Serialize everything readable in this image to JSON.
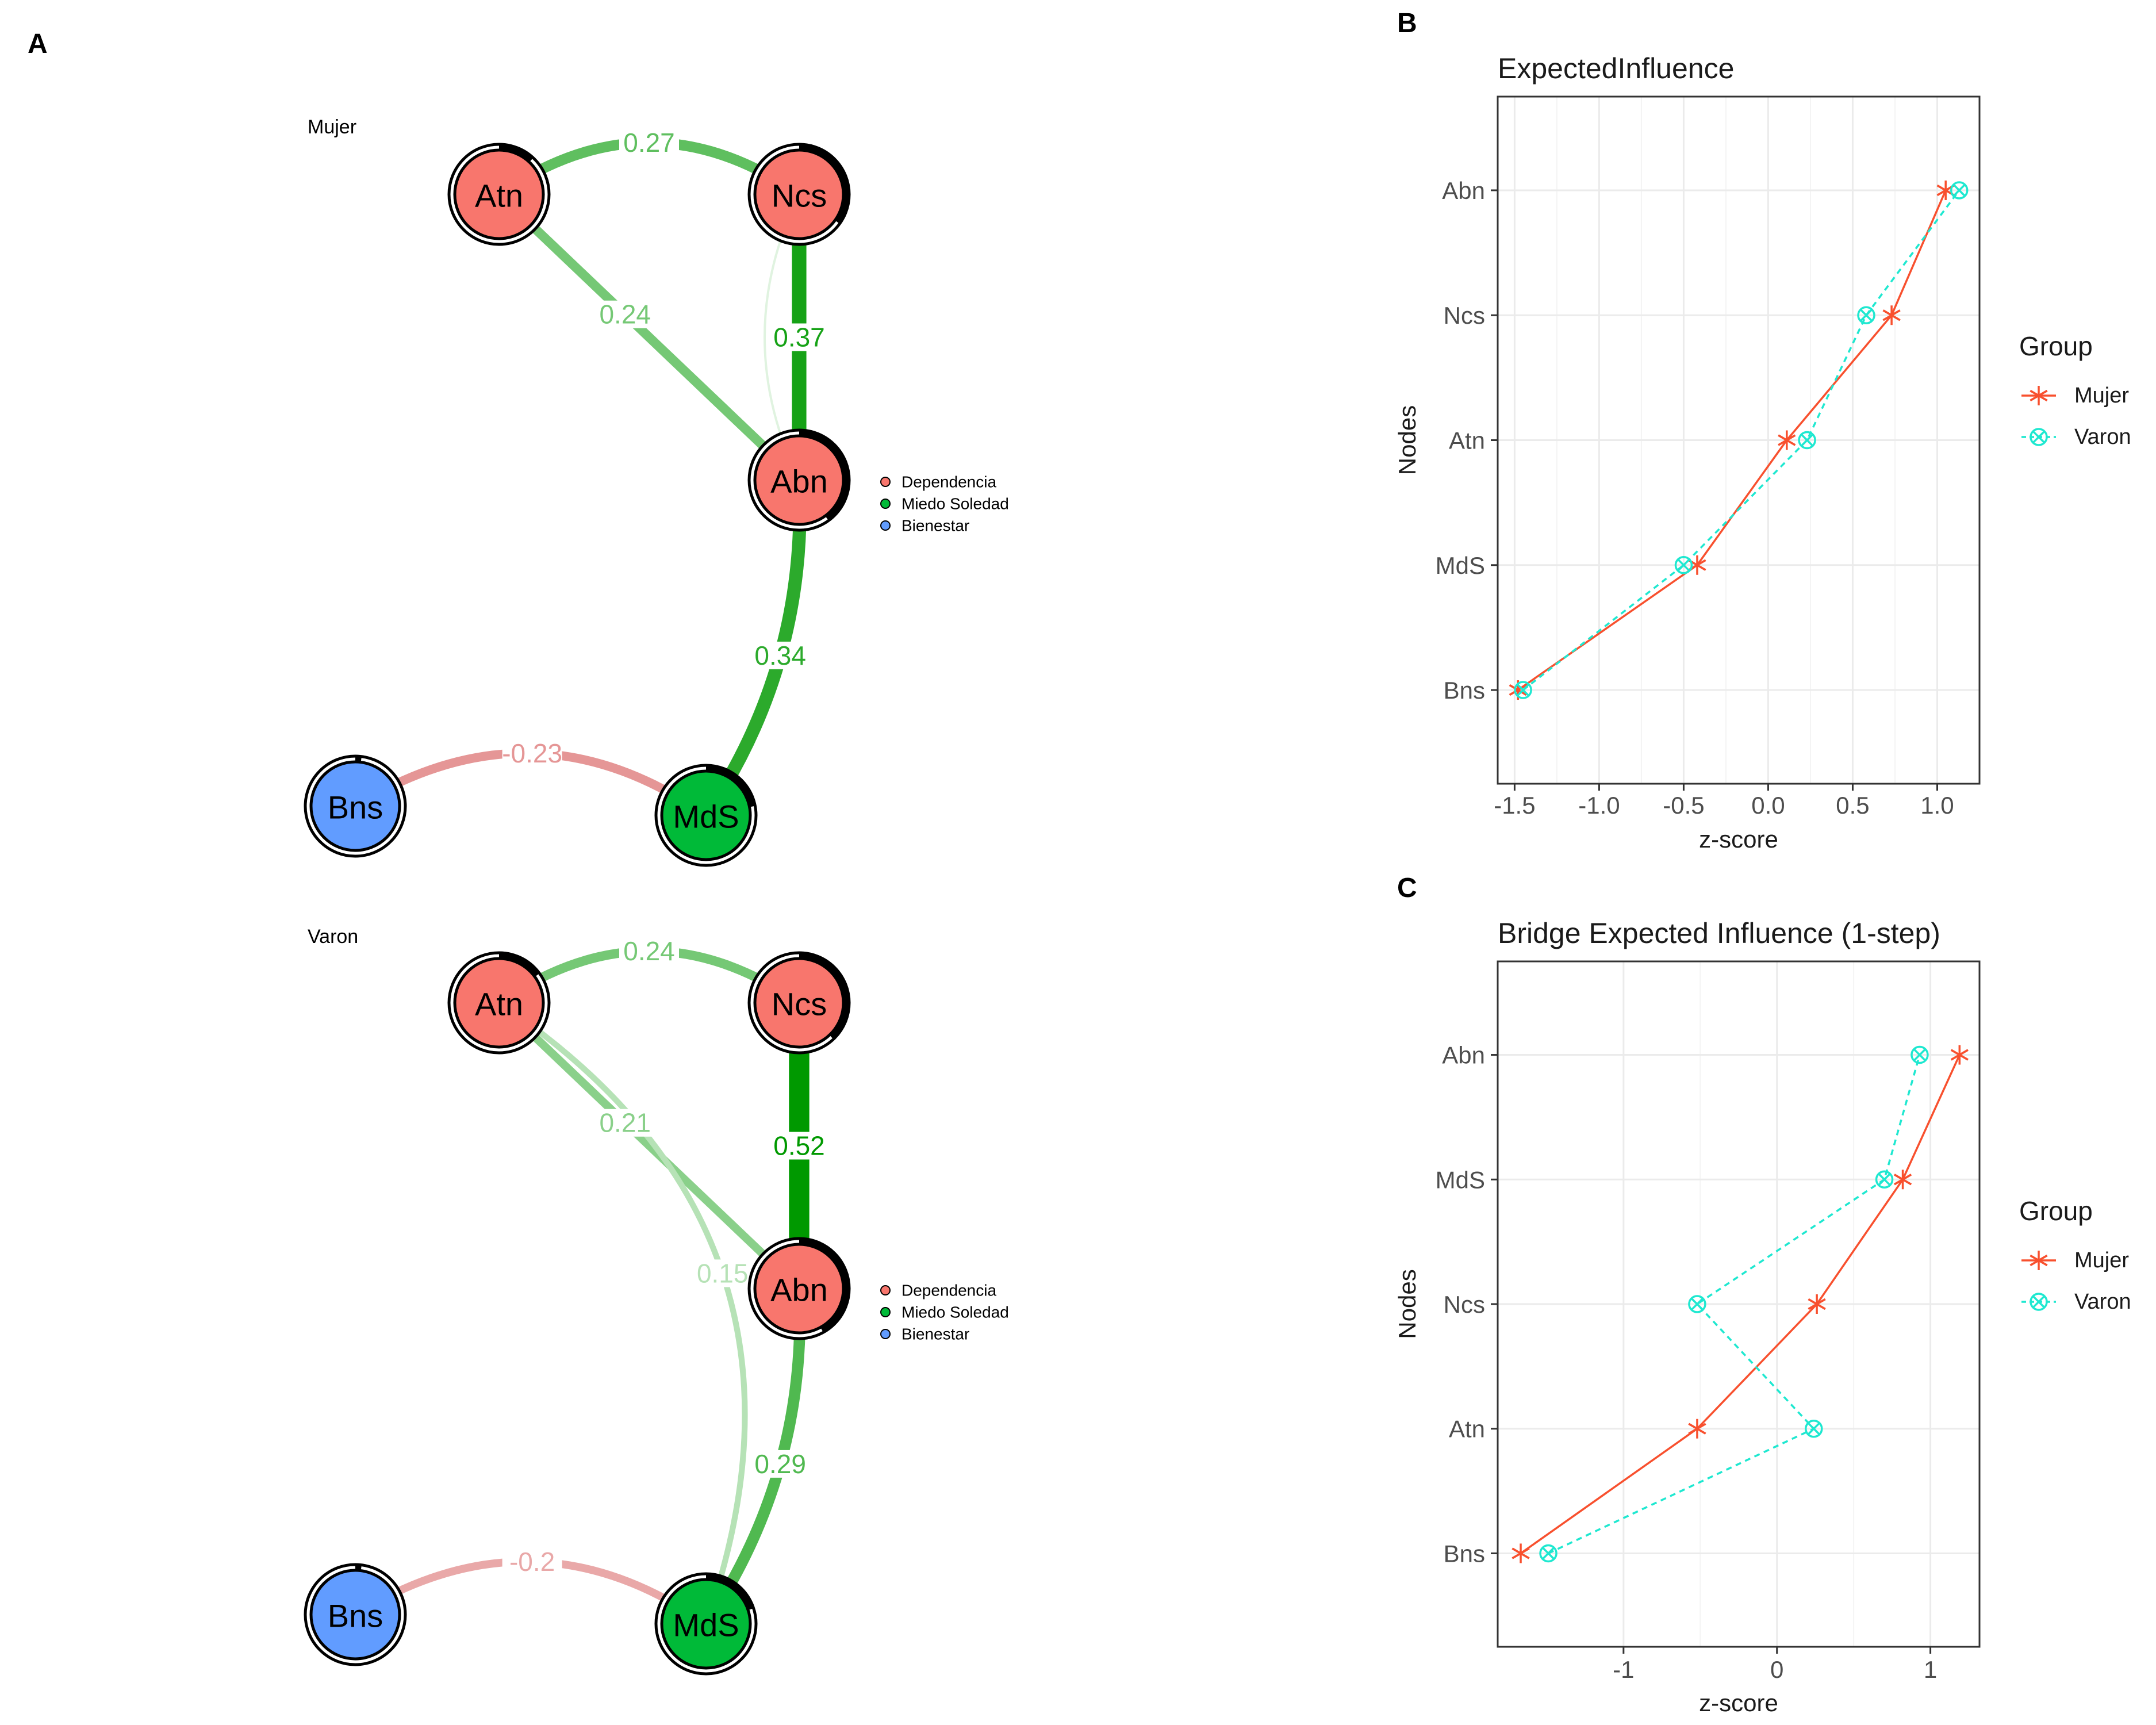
{
  "panels": {
    "a": "A",
    "b": "B",
    "c": "C"
  },
  "networks": [
    {
      "title": "Mujer",
      "nodes": [
        {
          "id": "Atn",
          "label": "Atn",
          "group": "Dependencia",
          "pie": 0.12
        },
        {
          "id": "Ncs",
          "label": "Ncs",
          "group": "Dependencia",
          "pie": 0.35
        },
        {
          "id": "Abn",
          "label": "Abn",
          "group": "Dependencia",
          "pie": 0.4
        },
        {
          "id": "Bns",
          "label": "Bns",
          "group": "Bienestar",
          "pie": 0.02
        },
        {
          "id": "MdS",
          "label": "MdS",
          "group": "Miedo Soledad",
          "pie": 0.22
        }
      ],
      "edges": [
        {
          "from": "Atn",
          "to": "Ncs",
          "weight": 0.27,
          "label": "0.27"
        },
        {
          "from": "Atn",
          "to": "Abn",
          "weight": 0.24,
          "label": "0.24"
        },
        {
          "from": "Ncs",
          "to": "Abn",
          "weight": 0.37,
          "label": "0.37"
        },
        {
          "from": "Ncs",
          "to": "Abn",
          "weight": 0.05,
          "label": ""
        },
        {
          "from": "Abn",
          "to": "MdS",
          "weight": 0.34,
          "label": "0.34"
        },
        {
          "from": "Bns",
          "to": "MdS",
          "weight": -0.23,
          "label": "-0.23"
        }
      ],
      "legend": [
        {
          "label": "Dependencia",
          "color": "#F8766D"
        },
        {
          "label": "Miedo Soledad",
          "color": "#00BA38"
        },
        {
          "label": "Bienestar",
          "color": "#619CFF"
        }
      ]
    },
    {
      "title": "Varon",
      "nodes": [
        {
          "id": "Atn",
          "label": "Atn",
          "group": "Dependencia",
          "pie": 0.15
        },
        {
          "id": "Ncs",
          "label": "Ncs",
          "group": "Dependencia",
          "pie": 0.38
        },
        {
          "id": "Abn",
          "label": "Abn",
          "group": "Dependencia",
          "pie": 0.42
        },
        {
          "id": "Bns",
          "label": "Bns",
          "group": "Bienestar",
          "pie": 0.02
        },
        {
          "id": "MdS",
          "label": "MdS",
          "group": "Miedo Soledad",
          "pie": 0.2
        }
      ],
      "edges": [
        {
          "from": "Atn",
          "to": "Ncs",
          "weight": 0.24,
          "label": "0.24"
        },
        {
          "from": "Atn",
          "to": "Abn",
          "weight": 0.21,
          "label": "0.21"
        },
        {
          "from": "Ncs",
          "to": "Abn",
          "weight": 0.52,
          "label": "0.52"
        },
        {
          "from": "Atn",
          "to": "MdS",
          "weight": 0.15,
          "label": "0.15"
        },
        {
          "from": "Abn",
          "to": "MdS",
          "weight": 0.29,
          "label": "0.29"
        },
        {
          "from": "Bns",
          "to": "MdS",
          "weight": -0.2,
          "label": "-0.2"
        }
      ],
      "legend": [
        {
          "label": "Dependencia",
          "color": "#F8766D"
        },
        {
          "label": "Miedo Soledad",
          "color": "#00BA38"
        },
        {
          "label": "Bienestar",
          "color": "#619CFF"
        }
      ]
    }
  ],
  "colors": {
    "positive_edge": "#009900",
    "negative_edge": "#CC3333",
    "mujer": "#F8502E",
    "varon": "#1EE8D0"
  },
  "chart_data": [
    {
      "type": "line",
      "title": "ExpectedInfluence",
      "xlabel": "z-score",
      "ylabel": "Nodes",
      "categories": [
        "Bns",
        "MdS",
        "Atn",
        "Ncs",
        "Abn"
      ],
      "xlim": [
        -1.6,
        1.25
      ],
      "xticks": [
        -1.5,
        -1.0,
        -0.5,
        0.0,
        0.5,
        1.0
      ],
      "xtick_labels": [
        "-1.5",
        "-1.0",
        "-0.5",
        "0.0",
        "0.5",
        "1.0"
      ],
      "grid": true,
      "legend_title": "Group",
      "legend_position": "right",
      "series": [
        {
          "name": "Mujer",
          "values": [
            -1.48,
            -0.42,
            0.11,
            0.73,
            1.05
          ],
          "marker": "asterisk",
          "line": "solid"
        },
        {
          "name": "Varon",
          "values": [
            -1.45,
            -0.5,
            0.23,
            0.58,
            1.13
          ],
          "marker": "circle-x",
          "line": "dashed"
        }
      ]
    },
    {
      "type": "line",
      "title": "Bridge Expected Influence (1-step)",
      "xlabel": "z-score",
      "ylabel": "Nodes",
      "categories": [
        "Bns",
        "Atn",
        "Ncs",
        "MdS",
        "Abn"
      ],
      "xlim": [
        -1.82,
        1.32
      ],
      "xticks": [
        -1,
        0,
        1
      ],
      "xtick_labels": [
        "-1",
        "0",
        "1"
      ],
      "grid": true,
      "legend_title": "Group",
      "legend_position": "right",
      "series": [
        {
          "name": "Mujer",
          "values": [
            -1.67,
            -0.52,
            0.26,
            0.82,
            1.19
          ],
          "marker": "asterisk",
          "line": "solid"
        },
        {
          "name": "Varon",
          "values": [
            -1.49,
            0.24,
            -0.52,
            0.7,
            0.93
          ],
          "marker": "circle-x",
          "line": "dashed"
        }
      ]
    }
  ]
}
